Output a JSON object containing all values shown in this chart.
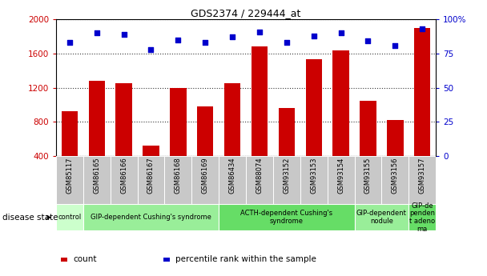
{
  "title": "GDS2374 / 229444_at",
  "samples": [
    "GSM85117",
    "GSM86165",
    "GSM86166",
    "GSM86167",
    "GSM86168",
    "GSM86169",
    "GSM86434",
    "GSM88074",
    "GSM93152",
    "GSM93153",
    "GSM93154",
    "GSM93155",
    "GSM93156",
    "GSM93157"
  ],
  "counts": [
    920,
    1280,
    1250,
    520,
    1200,
    980,
    1250,
    1680,
    960,
    1530,
    1640,
    1050,
    820,
    1900
  ],
  "percentiles": [
    83,
    90,
    89,
    78,
    85,
    83,
    87,
    91,
    83,
    88,
    90,
    84,
    81,
    93
  ],
  "ylim_left": [
    400,
    2000
  ],
  "ylim_right": [
    0,
    100
  ],
  "yticks_left": [
    400,
    800,
    1200,
    1600,
    2000
  ],
  "yticks_right": [
    0,
    25,
    50,
    75,
    100
  ],
  "bar_color": "#cc0000",
  "dot_color": "#0000cc",
  "tick_label_bg": "#c8c8c8",
  "disease_groups": [
    {
      "label": "control",
      "start": 0,
      "end": 1,
      "color": "#ccffcc"
    },
    {
      "label": "GIP-dependent Cushing's syndrome",
      "start": 1,
      "end": 6,
      "color": "#99ee99"
    },
    {
      "label": "ACTH-dependent Cushing's\nsyndrome",
      "start": 6,
      "end": 11,
      "color": "#66dd66"
    },
    {
      "label": "GIP-dependent\nnodule",
      "start": 11,
      "end": 13,
      "color": "#99ee99"
    },
    {
      "label": "GIP-de\npenden\nt adeno\nma",
      "start": 13,
      "end": 14,
      "color": "#66dd66"
    }
  ],
  "legend_items": [
    {
      "label": "count",
      "color": "#cc0000"
    },
    {
      "label": "percentile rank within the sample",
      "color": "#0000cc"
    }
  ],
  "left_axis_color": "#cc0000",
  "right_axis_color": "#0000cc",
  "disease_state_label": "disease state"
}
